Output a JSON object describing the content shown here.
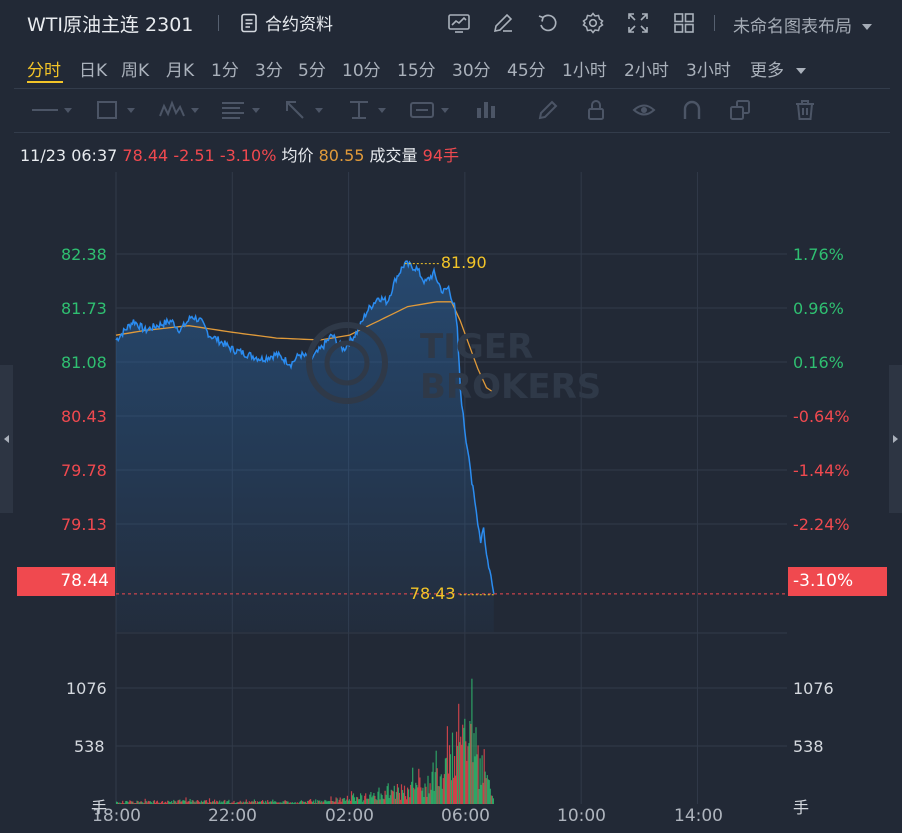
{
  "header": {
    "symbol": "WTI原油主连 2301",
    "contract_info": "合约资料",
    "layout_name": "未命名图表布局",
    "icons": [
      "chart-icon",
      "edit-icon",
      "refresh-icon",
      "settings-icon",
      "fullscreen-icon",
      "grid-icon"
    ]
  },
  "periods": [
    "分时",
    "日K",
    "周K",
    "月K",
    "1分",
    "3分",
    "5分",
    "10分",
    "15分",
    "30分",
    "45分",
    "1小时",
    "2小时",
    "3小时",
    "更多"
  ],
  "active_period": "分时",
  "draw_tools": [
    "line-tool-icon",
    "rect-tool-icon",
    "wave-tool-icon",
    "fib-tool-icon",
    "arrow-tool-icon",
    "text-tool-icon",
    "label-tool-icon",
    "bars-tool-icon",
    "pencil-icon",
    "lock-icon",
    "eye-icon",
    "magnet-icon",
    "clone-icon",
    "trash-icon"
  ],
  "info": {
    "time": "11/23 06:37",
    "price": "78.44",
    "change": "-2.51",
    "change_pct": "-3.10%",
    "avg_label": "均价",
    "avg_value": "80.55",
    "vol_label": "成交量",
    "vol_value": "94手"
  },
  "colors": {
    "up": "#2fbf71",
    "down": "#f0494f",
    "price_line": "#2b8cf0",
    "avg_line": "#e09a3a",
    "accent": "#f2c428"
  },
  "chart_data": {
    "type": "line",
    "price_axis": [
      "82.38",
      "81.73",
      "81.08",
      "80.43",
      "79.78",
      "79.13"
    ],
    "pct_axis": [
      "1.76%",
      "0.96%",
      "0.16%",
      "-0.64%",
      "-1.44%",
      "-2.24%"
    ],
    "current_price": "78.44",
    "current_pct": "-3.10%",
    "high_label": "81.90",
    "low_label": "78.43",
    "volume_axis": [
      "1076",
      "538",
      "手"
    ],
    "x_ticks": [
      "18:00",
      "22:00",
      "02:00",
      "06:00",
      "10:00",
      "14:00"
    ],
    "ylim": [
      78.04,
      82.86
    ],
    "xlim_hours": [
      0,
      23
    ],
    "series": [
      {
        "name": "price",
        "points": [
          [
            0,
            81.1
          ],
          [
            0.3,
            81.2
          ],
          [
            0.6,
            81.3
          ],
          [
            1.0,
            81.2
          ],
          [
            1.4,
            81.25
          ],
          [
            1.9,
            81.3
          ],
          [
            2.2,
            81.2
          ],
          [
            2.6,
            81.35
          ],
          [
            2.9,
            81.3
          ],
          [
            3.2,
            81.15
          ],
          [
            3.5,
            81.1
          ],
          [
            4.0,
            81.0
          ],
          [
            4.5,
            80.95
          ],
          [
            5.0,
            80.9
          ],
          [
            5.5,
            80.95
          ],
          [
            6.0,
            80.85
          ],
          [
            6.3,
            80.95
          ],
          [
            6.7,
            80.9
          ],
          [
            7.0,
            81.0
          ],
          [
            7.4,
            81.15
          ],
          [
            7.8,
            81.0
          ],
          [
            8.3,
            81.2
          ],
          [
            8.6,
            81.4
          ],
          [
            9.0,
            81.55
          ],
          [
            9.3,
            81.5
          ],
          [
            9.6,
            81.75
          ],
          [
            9.9,
            81.9
          ],
          [
            10.3,
            81.85
          ],
          [
            10.6,
            81.7
          ],
          [
            10.9,
            81.8
          ],
          [
            11.2,
            81.6
          ],
          [
            11.4,
            81.65
          ],
          [
            11.6,
            81.45
          ],
          [
            11.7,
            81.2
          ],
          [
            11.8,
            80.6
          ],
          [
            11.9,
            80.3
          ],
          [
            12.0,
            80.05
          ],
          [
            12.1,
            79.9
          ],
          [
            12.2,
            79.6
          ],
          [
            12.3,
            79.4
          ],
          [
            12.4,
            79.2
          ],
          [
            12.5,
            79.0
          ],
          [
            12.6,
            79.15
          ],
          [
            12.7,
            78.85
          ],
          [
            12.85,
            78.62
          ],
          [
            12.95,
            78.44
          ]
        ]
      },
      {
        "name": "avg",
        "points": [
          [
            0,
            81.15
          ],
          [
            1,
            81.2
          ],
          [
            2.5,
            81.25
          ],
          [
            4,
            81.18
          ],
          [
            5.5,
            81.12
          ],
          [
            7,
            81.1
          ],
          [
            8,
            81.15
          ],
          [
            9,
            81.3
          ],
          [
            10,
            81.45
          ],
          [
            11,
            81.5
          ],
          [
            11.5,
            81.5
          ],
          [
            11.8,
            81.3
          ],
          [
            12.1,
            81.05
          ],
          [
            12.4,
            80.8
          ],
          [
            12.7,
            80.6
          ],
          [
            12.95,
            80.55
          ]
        ]
      }
    ],
    "volume": {
      "max": 1614,
      "profile": [
        [
          0,
          40
        ],
        [
          2,
          60
        ],
        [
          4,
          45
        ],
        [
          6,
          40
        ],
        [
          7,
          60
        ],
        [
          8,
          120
        ],
        [
          8.5,
          150
        ],
        [
          9,
          200
        ],
        [
          9.5,
          260
        ],
        [
          10,
          300
        ],
        [
          10.5,
          400
        ],
        [
          11,
          550
        ],
        [
          11.3,
          800
        ],
        [
          11.6,
          1200
        ],
        [
          11.8,
          1600
        ],
        [
          12.0,
          1100
        ],
        [
          12.2,
          1400
        ],
        [
          12.4,
          900
        ],
        [
          12.6,
          600
        ],
        [
          12.8,
          300
        ],
        [
          12.95,
          94
        ]
      ]
    }
  },
  "watermark": {
    "line1": "TIGER",
    "line2": "BROKERS"
  }
}
